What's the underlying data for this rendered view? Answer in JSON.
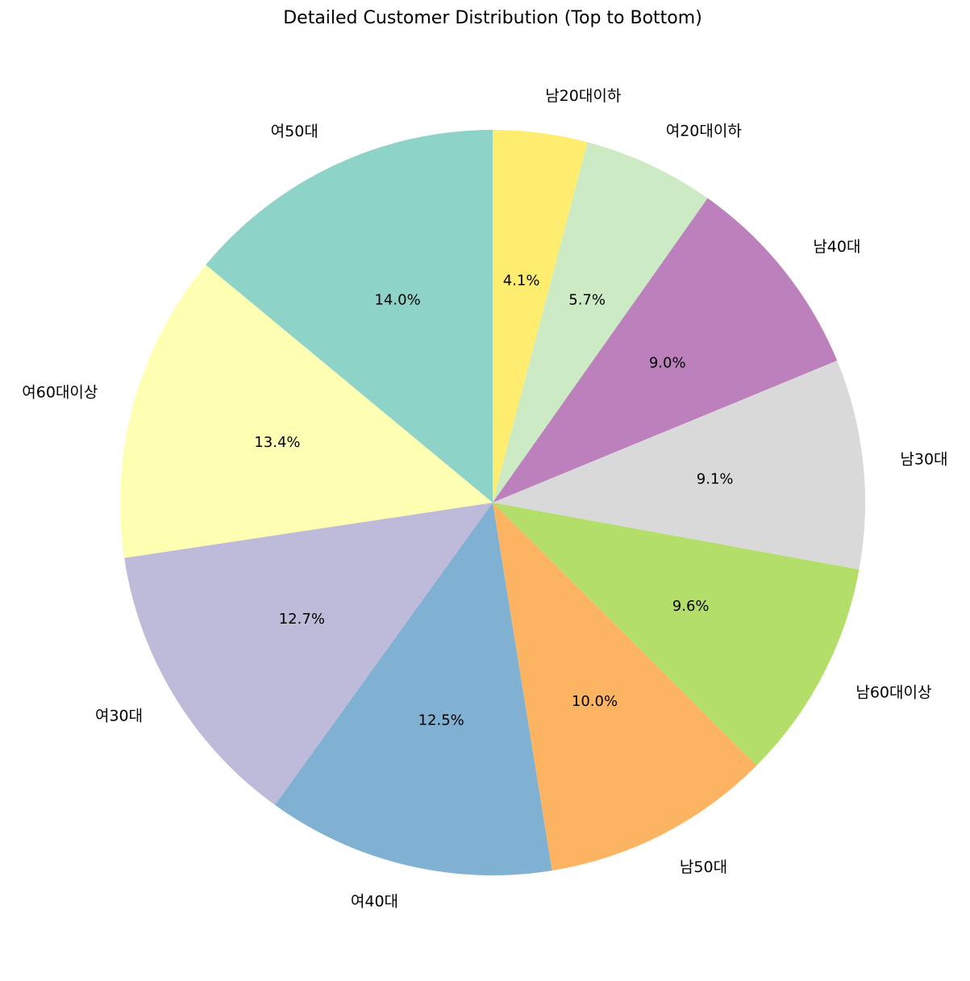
{
  "chart_data": {
    "type": "pie",
    "title": "Detailed Customer Distribution (Top to Bottom)",
    "start_angle_deg": 90,
    "direction": "clockwise",
    "slices": [
      {
        "label": "남20대이하",
        "value": 4.1,
        "pct_label": "4.1%",
        "color": "#ffed6f"
      },
      {
        "label": "여20대이하",
        "value": 5.7,
        "pct_label": "5.7%",
        "color": "#ccebc5"
      },
      {
        "label": "남40대",
        "value": 9.0,
        "pct_label": "9.0%",
        "color": "#bc80bd"
      },
      {
        "label": "남30대",
        "value": 9.1,
        "pct_label": "9.1%",
        "color": "#d9d9d9"
      },
      {
        "label": "남60대이상",
        "value": 9.6,
        "pct_label": "9.6%",
        "color": "#b3de69"
      },
      {
        "label": "남50대",
        "value": 10.0,
        "pct_label": "10.0%",
        "color": "#fdb462"
      },
      {
        "label": "여40대",
        "value": 12.5,
        "pct_label": "12.5%",
        "color": "#80b1d3"
      },
      {
        "label": "여30대",
        "value": 12.7,
        "pct_label": "12.7%",
        "color": "#bebada"
      },
      {
        "label": "여60대이상",
        "value": 13.4,
        "pct_label": "13.4%",
        "color": "#ffffb3"
      },
      {
        "label": "여50대",
        "value": 14.0,
        "pct_label": "14.0%",
        "color": "#8dd3c7"
      }
    ]
  }
}
